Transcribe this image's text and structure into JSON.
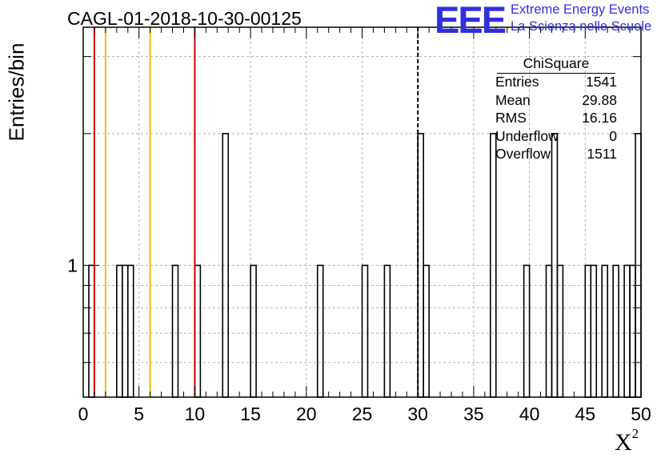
{
  "chart_data": {
    "type": "bar",
    "title": "CAGL-01-2018-10-30-00125",
    "xlabel": "X",
    "xlabel_sup": "2",
    "ylabel": "Entries/bin",
    "xlim": [
      0,
      50
    ],
    "ylog": true,
    "ylim": [
      0.5,
      3.5
    ],
    "grid": true,
    "x_ticks": [
      "0",
      "5",
      "10",
      "15",
      "20",
      "25",
      "30",
      "35",
      "40",
      "45",
      "50"
    ],
    "y_tick_labels": [
      {
        "value": 1,
        "label": "1"
      }
    ],
    "bin_width": 0.5,
    "bins": [
      {
        "x": 0.5,
        "y": 1
      },
      {
        "x": 3.0,
        "y": 1
      },
      {
        "x": 3.5,
        "y": 1
      },
      {
        "x": 4.0,
        "y": 1
      },
      {
        "x": 8.0,
        "y": 1
      },
      {
        "x": 10.0,
        "y": 1
      },
      {
        "x": 12.5,
        "y": 2
      },
      {
        "x": 15.0,
        "y": 1
      },
      {
        "x": 21.0,
        "y": 1
      },
      {
        "x": 25.0,
        "y": 1
      },
      {
        "x": 27.0,
        "y": 1
      },
      {
        "x": 30.0,
        "y": 2
      },
      {
        "x": 30.5,
        "y": 1
      },
      {
        "x": 36.5,
        "y": 2
      },
      {
        "x": 39.5,
        "y": 1
      },
      {
        "x": 41.5,
        "y": 1
      },
      {
        "x": 42.0,
        "y": 2
      },
      {
        "x": 42.5,
        "y": 1
      },
      {
        "x": 45.0,
        "y": 1
      },
      {
        "x": 45.5,
        "y": 1
      },
      {
        "x": 46.5,
        "y": 1
      },
      {
        "x": 47.5,
        "y": 1
      },
      {
        "x": 48.5,
        "y": 1
      },
      {
        "x": 49.0,
        "y": 1
      },
      {
        "x": 49.5,
        "y": 2
      }
    ],
    "vertical_lines": [
      {
        "x": 1,
        "color": "#cc0000",
        "style": "solid"
      },
      {
        "x": 2,
        "color": "#f0c000",
        "style": "solid"
      },
      {
        "x": 6,
        "color": "#f0c000",
        "style": "solid"
      },
      {
        "x": 10,
        "color": "#cc0000",
        "style": "solid"
      },
      {
        "x": 30,
        "color": "#000000",
        "style": "dashed"
      }
    ],
    "stats_box": {
      "name": "ChiSquare",
      "rows": [
        {
          "key": "Entries",
          "value": "1541"
        },
        {
          "key": "Mean",
          "value": "29.88"
        },
        {
          "key": "RMS",
          "value": "16.16"
        },
        {
          "key": "Underflow",
          "value": "0"
        },
        {
          "key": "Overflow",
          "value": "1511"
        }
      ]
    }
  },
  "logo": {
    "mark": "EEE",
    "line1": "Extreme Energy Events",
    "line2": "La Scienza nelle Scuole",
    "color": "#2f2fe0"
  }
}
